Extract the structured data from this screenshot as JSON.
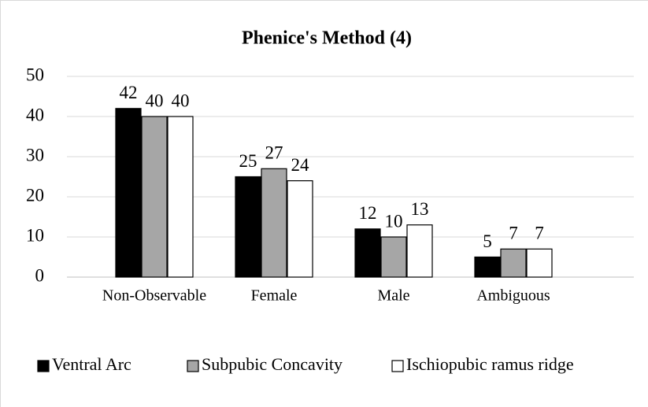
{
  "chart_data": {
    "type": "bar",
    "title": "Phenice's Method (4)",
    "categories": [
      "Non-Observable",
      "Female",
      "Male",
      "Ambiguous"
    ],
    "series": [
      {
        "name": "Ventral Arc",
        "color": "#000000",
        "values": [
          42,
          25,
          12,
          5
        ]
      },
      {
        "name": "Subpubic Concavity",
        "color": "#a6a6a6",
        "values": [
          40,
          27,
          10,
          7
        ]
      },
      {
        "name": "Ischiopubic ramus ridge",
        "color": "#ffffff",
        "values": [
          40,
          24,
          13,
          7
        ]
      }
    ],
    "ylim": [
      0,
      50
    ],
    "yticks": [
      0,
      10,
      20,
      30,
      40,
      50
    ],
    "grid": true,
    "legend": "bottom"
  }
}
